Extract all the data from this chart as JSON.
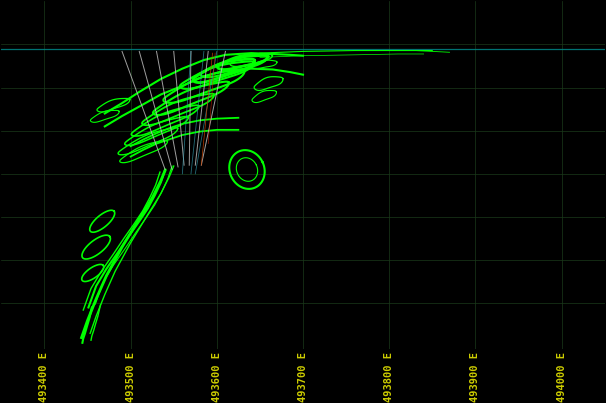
{
  "background_color": "#000000",
  "grid_color": "#1a3a1a",
  "figure_width": 6.06,
  "figure_height": 4.03,
  "dpi": 100,
  "xlim": [
    493350,
    494050
  ],
  "ylim": [
    0,
    403
  ],
  "xtick_labels": [
    "493400 E",
    "493500 E",
    "493600 E",
    "493700 E",
    "493800 E",
    "493900 E",
    "494000 E"
  ],
  "xtick_positions": [
    493400,
    493500,
    493600,
    493700,
    493800,
    493900,
    494000
  ],
  "grid_xticks": [
    493400,
    493500,
    493600,
    493700,
    493800,
    493900,
    494000
  ],
  "grid_yticks": [
    50,
    100,
    150,
    200,
    250,
    300,
    350
  ],
  "bright_green": "#00ff00",
  "white_line_color": "#bbbbbb",
  "cyan_color": "#008888",
  "tick_label_color": "#cccc00",
  "tick_label_fontsize": 7.5
}
